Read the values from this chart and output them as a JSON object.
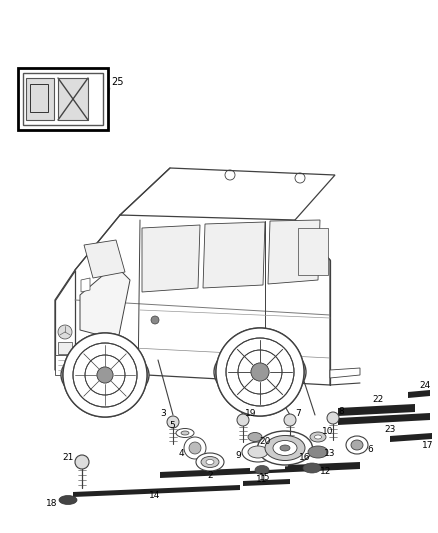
{
  "bg_color": "#ffffff",
  "fig_width": 4.38,
  "fig_height": 5.33,
  "dpi": 100,
  "line_color": "#404040",
  "text_color": "#000000",
  "part_font_size": 6.5,
  "leader_color": "#888888"
}
